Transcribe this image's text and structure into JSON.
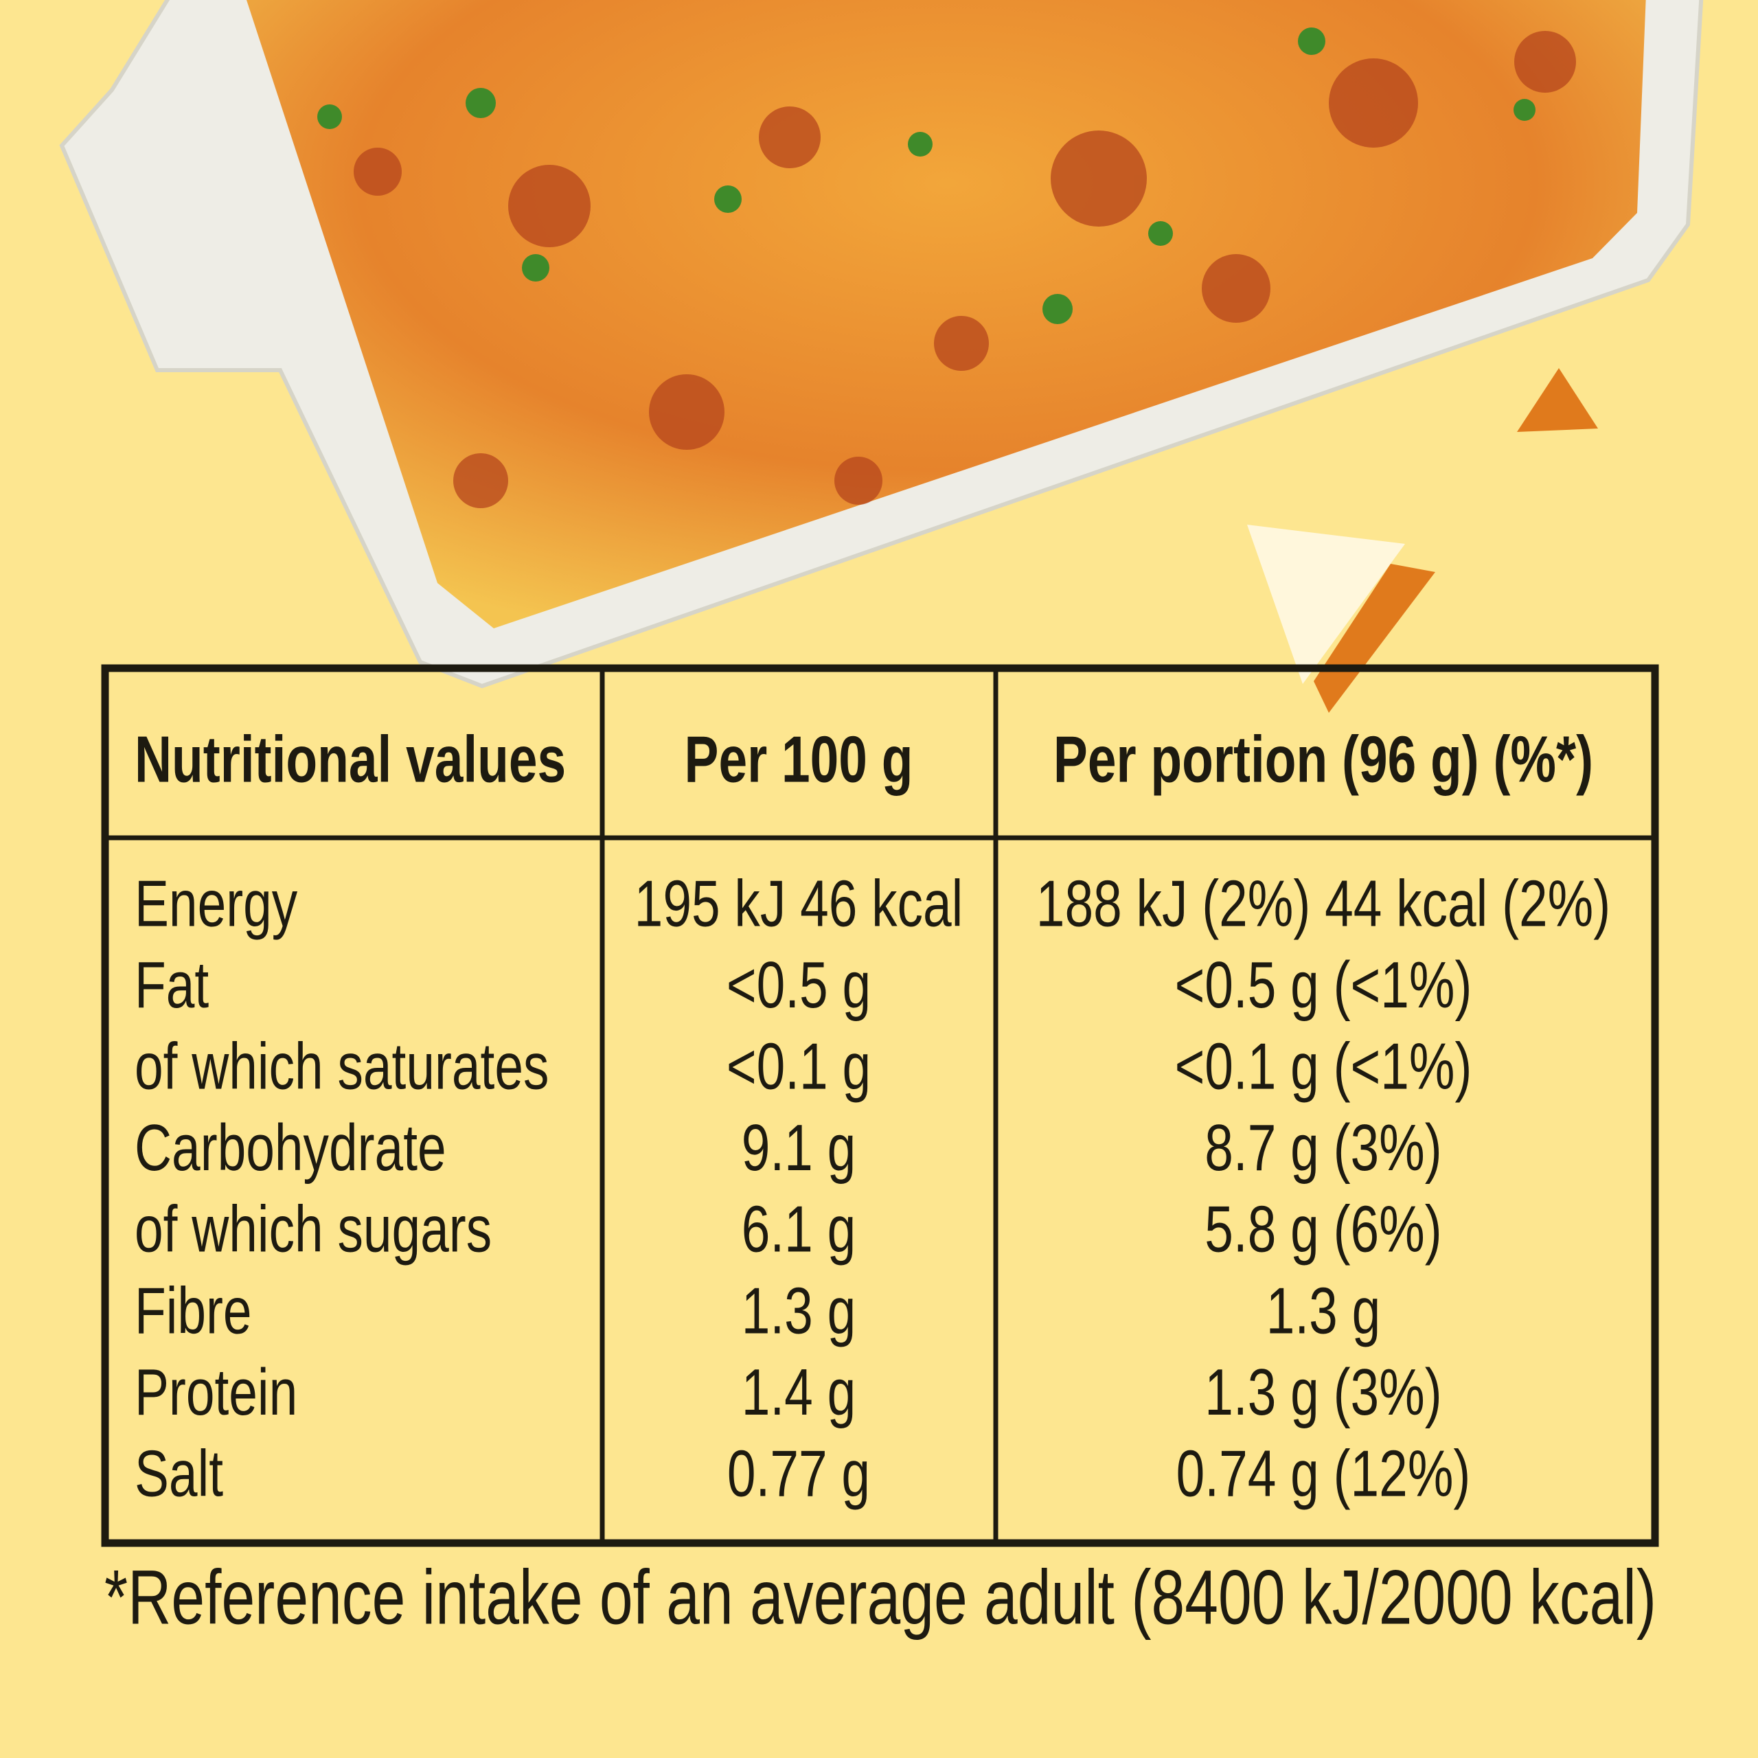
{
  "table": {
    "header": [
      "Nutritional values",
      "Per 100 g",
      "Per portion (96 g) (%*)"
    ],
    "rows": [
      [
        "Energy",
        "195 kJ 46 kcal",
        "188 kJ (2%) 44 kcal (2%)"
      ],
      [
        "Fat",
        "<0.5 g",
        "<0.5 g (<1%)"
      ],
      [
        "of which saturates",
        "<0.1 g",
        "<0.1 g (<1%)"
      ],
      [
        "Carbohydrate",
        "9.1 g",
        "8.7 g (3%)"
      ],
      [
        "of which sugars",
        "6.1 g",
        "5.8 g (6%)"
      ],
      [
        "Fibre",
        "1.3 g",
        "1.3 g"
      ],
      [
        "Protein",
        "1.4 g",
        "1.3 g (3%)"
      ],
      [
        "Salt",
        "0.77 g",
        "0.74 g (12%)"
      ]
    ]
  },
  "footnote": "*Reference intake of an average adult (8400 kJ/2000 kcal)"
}
